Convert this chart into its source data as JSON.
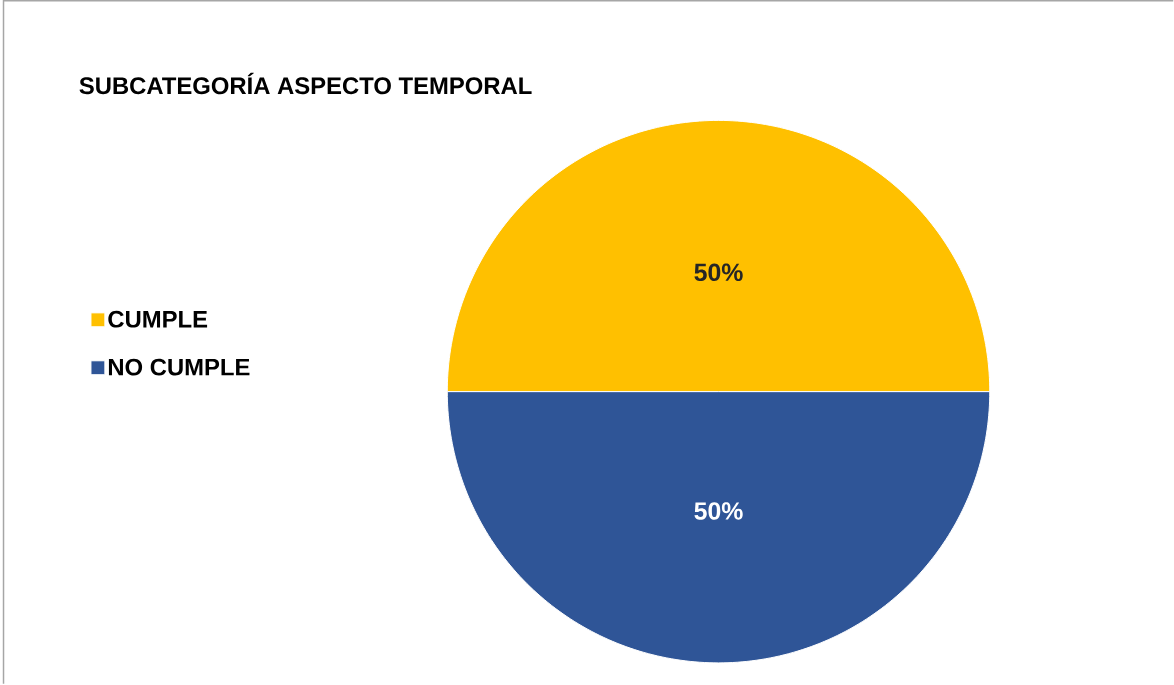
{
  "chart_data": {
    "type": "pie",
    "title": "SUBCATEGORÍA ASPECTO TEMPORAL",
    "categories": [
      "CUMPLE",
      "NO CUMPLE"
    ],
    "values": [
      50,
      50
    ],
    "value_labels": [
      "50%",
      "50%"
    ],
    "colors": [
      "#ffc000",
      "#2f5597"
    ],
    "legend": "left"
  }
}
